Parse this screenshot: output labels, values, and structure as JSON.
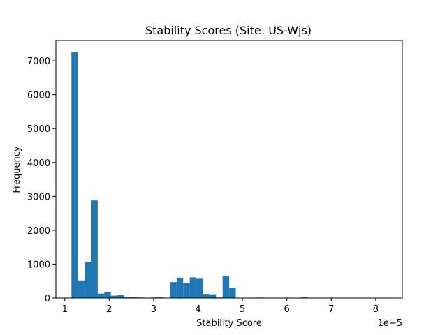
{
  "chart_data": {
    "type": "bar",
    "title": "Stability Scores (Site: US-Wjs)",
    "xlabel": "Stability Score",
    "ylabel": "Frequency",
    "x_offset_label": "1e−5",
    "bar_color": "#1f77b4",
    "xlim": [
      0.8,
      8.6
    ],
    "ylim": [
      0,
      7600
    ],
    "grid": false,
    "x_ticks": [
      1,
      2,
      3,
      4,
      5,
      6,
      7,
      8
    ],
    "y_ticks": [
      0,
      1000,
      2000,
      3000,
      4000,
      5000,
      6000,
      7000
    ],
    "bin_width": 0.148,
    "bins": [
      {
        "x0": 1.15,
        "count": 7250
      },
      {
        "x0": 1.298,
        "count": 520
      },
      {
        "x0": 1.446,
        "count": 1070
      },
      {
        "x0": 1.594,
        "count": 2880
      },
      {
        "x0": 1.742,
        "count": 130
      },
      {
        "x0": 1.89,
        "count": 170
      },
      {
        "x0": 2.038,
        "count": 70
      },
      {
        "x0": 2.186,
        "count": 90
      },
      {
        "x0": 2.334,
        "count": 25
      },
      {
        "x0": 2.482,
        "count": 20
      },
      {
        "x0": 2.63,
        "count": 15
      },
      {
        "x0": 2.778,
        "count": 10
      },
      {
        "x0": 2.926,
        "count": 15
      },
      {
        "x0": 3.074,
        "count": 20
      },
      {
        "x0": 3.222,
        "count": 5
      },
      {
        "x0": 3.37,
        "count": 470
      },
      {
        "x0": 3.518,
        "count": 600
      },
      {
        "x0": 3.666,
        "count": 440
      },
      {
        "x0": 3.814,
        "count": 610
      },
      {
        "x0": 3.962,
        "count": 570
      },
      {
        "x0": 4.11,
        "count": 120
      },
      {
        "x0": 4.258,
        "count": 110
      },
      {
        "x0": 4.406,
        "count": 15
      },
      {
        "x0": 4.554,
        "count": 660
      },
      {
        "x0": 4.702,
        "count": 310
      },
      {
        "x0": 4.85,
        "count": 10
      },
      {
        "x0": 4.998,
        "count": 5
      },
      {
        "x0": 5.146,
        "count": 5
      },
      {
        "x0": 5.294,
        "count": 15
      },
      {
        "x0": 5.442,
        "count": 5
      },
      {
        "x0": 6.326,
        "count": 20
      },
      {
        "x0": 6.474,
        "count": 5
      }
    ]
  }
}
